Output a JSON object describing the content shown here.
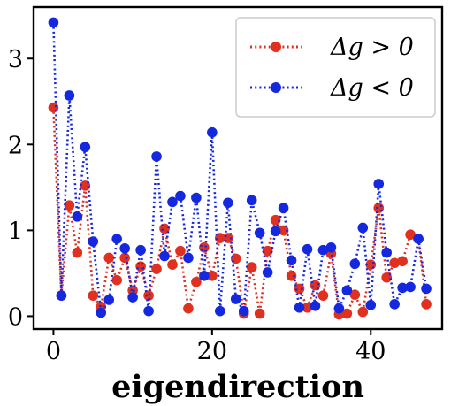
{
  "chart_data": {
    "type": "line",
    "title": "",
    "xlabel": "eigendirection",
    "ylabel": "",
    "xlim": [
      -2.5,
      49
    ],
    "ylim": [
      -0.15,
      3.6
    ],
    "xticks": [
      0,
      20,
      40
    ],
    "yticks": [
      0,
      1,
      2,
      3
    ],
    "grid": false,
    "legend_position": "top-right",
    "line_style": "dotted",
    "marker": "circle",
    "series": [
      {
        "name": "Δg > 0",
        "color": "#e03020",
        "x": [
          0,
          1,
          2,
          3,
          4,
          5,
          6,
          7,
          8,
          9,
          10,
          11,
          12,
          13,
          14,
          15,
          16,
          17,
          18,
          19,
          20,
          21,
          22,
          23,
          24,
          25,
          26,
          27,
          28,
          29,
          30,
          31,
          32,
          33,
          34,
          35,
          36,
          37,
          38,
          39,
          40,
          41,
          42,
          43,
          44,
          45,
          46,
          47
        ],
        "y": [
          2.43,
          0.24,
          1.29,
          0.74,
          1.52,
          0.24,
          0.11,
          0.68,
          0.42,
          0.68,
          0.3,
          0.58,
          0.24,
          0.55,
          1.02,
          0.6,
          0.76,
          0.09,
          0.4,
          0.8,
          0.47,
          0.91,
          0.91,
          0.67,
          0.03,
          0.57,
          0.03,
          0.76,
          1.12,
          1.0,
          0.47,
          0.32,
          0.1,
          0.36,
          0.24,
          0.73,
          0.02,
          0.03,
          0.25,
          0.05,
          0.6,
          1.26,
          0.45,
          0.62,
          0.64,
          0.95,
          0.9,
          0.14
        ]
      },
      {
        "name": "Δg < 0",
        "color": "#1428e0",
        "x": [
          0,
          1,
          2,
          3,
          4,
          5,
          6,
          7,
          8,
          9,
          10,
          11,
          12,
          13,
          14,
          15,
          16,
          17,
          18,
          19,
          20,
          21,
          22,
          23,
          24,
          25,
          26,
          27,
          28,
          29,
          30,
          31,
          32,
          33,
          34,
          35,
          36,
          37,
          38,
          39,
          40,
          41,
          42,
          43,
          44,
          45,
          46,
          47
        ],
        "y": [
          3.42,
          0.24,
          2.57,
          1.16,
          1.97,
          0.87,
          0.04,
          0.19,
          0.9,
          0.79,
          0.22,
          0.77,
          0.06,
          1.86,
          0.7,
          1.33,
          1.4,
          0.68,
          1.38,
          0.47,
          2.14,
          0.06,
          1.32,
          0.2,
          0.06,
          1.35,
          0.97,
          0.51,
          0.99,
          1.26,
          0.65,
          0.1,
          0.78,
          0.12,
          0.77,
          0.8,
          0.09,
          0.3,
          0.61,
          1.03,
          0.13,
          1.54,
          0.74,
          0.14,
          0.33,
          0.34,
          0.9,
          0.32
        ]
      }
    ]
  }
}
